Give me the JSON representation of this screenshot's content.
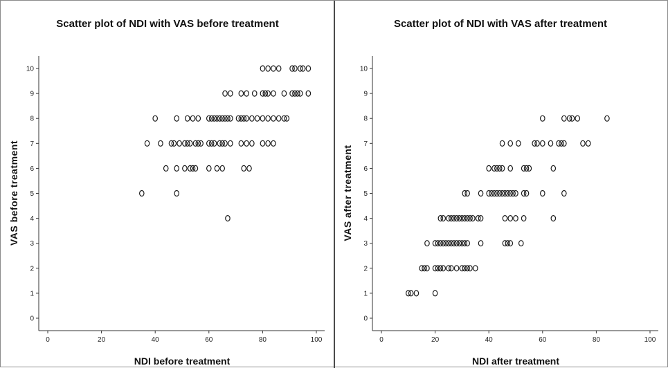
{
  "chart_data": [
    {
      "type": "scatter",
      "title": "Scatter plot of NDI with VAS before treatment",
      "xlabel": "NDI before treatment",
      "ylabel": "VAS before treatment",
      "xlim": [
        0,
        100
      ],
      "ylim": [
        0,
        10
      ],
      "xticks": [
        0,
        20,
        40,
        60,
        80,
        100
      ],
      "yticks": [
        0,
        1,
        2,
        3,
        4,
        5,
        6,
        7,
        8,
        9,
        10
      ],
      "grid": false,
      "marker": "open-circle",
      "points": [
        [
          35,
          5
        ],
        [
          48,
          5
        ],
        [
          67,
          4
        ],
        [
          44,
          6
        ],
        [
          48,
          6
        ],
        [
          51,
          6
        ],
        [
          53,
          6
        ],
        [
          54,
          6
        ],
        [
          55,
          6
        ],
        [
          60,
          6
        ],
        [
          63,
          6
        ],
        [
          65,
          6
        ],
        [
          73,
          6
        ],
        [
          75,
          6
        ],
        [
          37,
          7
        ],
        [
          42,
          7
        ],
        [
          46,
          7
        ],
        [
          47,
          7
        ],
        [
          49,
          7
        ],
        [
          51,
          7
        ],
        [
          52,
          7
        ],
        [
          53,
          7
        ],
        [
          55,
          7
        ],
        [
          56,
          7
        ],
        [
          57,
          7
        ],
        [
          60,
          7
        ],
        [
          61,
          7
        ],
        [
          62,
          7
        ],
        [
          64,
          7
        ],
        [
          65,
          7
        ],
        [
          66,
          7
        ],
        [
          68,
          7
        ],
        [
          72,
          7
        ],
        [
          74,
          7
        ],
        [
          76,
          7
        ],
        [
          80,
          7
        ],
        [
          82,
          7
        ],
        [
          84,
          7
        ],
        [
          40,
          8
        ],
        [
          48,
          8
        ],
        [
          52,
          8
        ],
        [
          54,
          8
        ],
        [
          56,
          8
        ],
        [
          60,
          8
        ],
        [
          61,
          8
        ],
        [
          62,
          8
        ],
        [
          63,
          8
        ],
        [
          64,
          8
        ],
        [
          65,
          8
        ],
        [
          66,
          8
        ],
        [
          67,
          8
        ],
        [
          68,
          8
        ],
        [
          71,
          8
        ],
        [
          72,
          8
        ],
        [
          73,
          8
        ],
        [
          74,
          8
        ],
        [
          76,
          8
        ],
        [
          78,
          8
        ],
        [
          80,
          8
        ],
        [
          82,
          8
        ],
        [
          84,
          8
        ],
        [
          86,
          8
        ],
        [
          88,
          8
        ],
        [
          89,
          8
        ],
        [
          66,
          9
        ],
        [
          68,
          9
        ],
        [
          72,
          9
        ],
        [
          74,
          9
        ],
        [
          77,
          9
        ],
        [
          80,
          9
        ],
        [
          81,
          9
        ],
        [
          82,
          9
        ],
        [
          84,
          9
        ],
        [
          88,
          9
        ],
        [
          91,
          9
        ],
        [
          92,
          9
        ],
        [
          93,
          9
        ],
        [
          94,
          9
        ],
        [
          97,
          9
        ],
        [
          80,
          10
        ],
        [
          82,
          10
        ],
        [
          84,
          10
        ],
        [
          86,
          10
        ],
        [
          91,
          10
        ],
        [
          92,
          10
        ],
        [
          94,
          10
        ],
        [
          95,
          10
        ],
        [
          97,
          10
        ]
      ]
    },
    {
      "type": "scatter",
      "title": "Scatter plot of NDI with VAS after treatment",
      "xlabel": "NDI after treatment",
      "ylabel": "VAS after treatment",
      "xlim": [
        0,
        100
      ],
      "ylim": [
        0,
        10
      ],
      "xticks": [
        0,
        20,
        40,
        60,
        80,
        100
      ],
      "yticks": [
        0,
        1,
        2,
        3,
        4,
        5,
        6,
        7,
        8,
        9,
        10
      ],
      "grid": false,
      "marker": "open-circle",
      "points": [
        [
          10,
          1
        ],
        [
          11,
          1
        ],
        [
          13,
          1
        ],
        [
          20,
          1
        ],
        [
          15,
          2
        ],
        [
          16,
          2
        ],
        [
          17,
          2
        ],
        [
          20,
          2
        ],
        [
          21,
          2
        ],
        [
          22,
          2
        ],
        [
          23,
          2
        ],
        [
          25,
          2
        ],
        [
          26,
          2
        ],
        [
          28,
          2
        ],
        [
          30,
          2
        ],
        [
          31,
          2
        ],
        [
          32,
          2
        ],
        [
          33,
          2
        ],
        [
          35,
          2
        ],
        [
          17,
          3
        ],
        [
          20,
          3
        ],
        [
          21,
          3
        ],
        [
          22,
          3
        ],
        [
          23,
          3
        ],
        [
          24,
          3
        ],
        [
          25,
          3
        ],
        [
          26,
          3
        ],
        [
          27,
          3
        ],
        [
          28,
          3
        ],
        [
          29,
          3
        ],
        [
          30,
          3
        ],
        [
          31,
          3
        ],
        [
          32,
          3
        ],
        [
          37,
          3
        ],
        [
          46,
          3
        ],
        [
          47,
          3
        ],
        [
          48,
          3
        ],
        [
          52,
          3
        ],
        [
          22,
          4
        ],
        [
          23,
          4
        ],
        [
          25,
          4
        ],
        [
          26,
          4
        ],
        [
          27,
          4
        ],
        [
          28,
          4
        ],
        [
          29,
          4
        ],
        [
          30,
          4
        ],
        [
          31,
          4
        ],
        [
          32,
          4
        ],
        [
          33,
          4
        ],
        [
          34,
          4
        ],
        [
          36,
          4
        ],
        [
          37,
          4
        ],
        [
          46,
          4
        ],
        [
          48,
          4
        ],
        [
          50,
          4
        ],
        [
          53,
          4
        ],
        [
          64,
          4
        ],
        [
          31,
          5
        ],
        [
          32,
          5
        ],
        [
          37,
          5
        ],
        [
          40,
          5
        ],
        [
          41,
          5
        ],
        [
          42,
          5
        ],
        [
          43,
          5
        ],
        [
          44,
          5
        ],
        [
          45,
          5
        ],
        [
          46,
          5
        ],
        [
          47,
          5
        ],
        [
          48,
          5
        ],
        [
          49,
          5
        ],
        [
          50,
          5
        ],
        [
          53,
          5
        ],
        [
          54,
          5
        ],
        [
          60,
          5
        ],
        [
          68,
          5
        ],
        [
          40,
          6
        ],
        [
          42,
          6
        ],
        [
          43,
          6
        ],
        [
          44,
          6
        ],
        [
          45,
          6
        ],
        [
          48,
          6
        ],
        [
          53,
          6
        ],
        [
          54,
          6
        ],
        [
          55,
          6
        ],
        [
          64,
          6
        ],
        [
          45,
          7
        ],
        [
          48,
          7
        ],
        [
          51,
          7
        ],
        [
          57,
          7
        ],
        [
          58,
          7
        ],
        [
          60,
          7
        ],
        [
          63,
          7
        ],
        [
          66,
          7
        ],
        [
          67,
          7
        ],
        [
          68,
          7
        ],
        [
          75,
          7
        ],
        [
          77,
          7
        ],
        [
          60,
          8
        ],
        [
          68,
          8
        ],
        [
          70,
          8
        ],
        [
          71,
          8
        ],
        [
          73,
          8
        ],
        [
          84,
          8
        ]
      ]
    }
  ]
}
